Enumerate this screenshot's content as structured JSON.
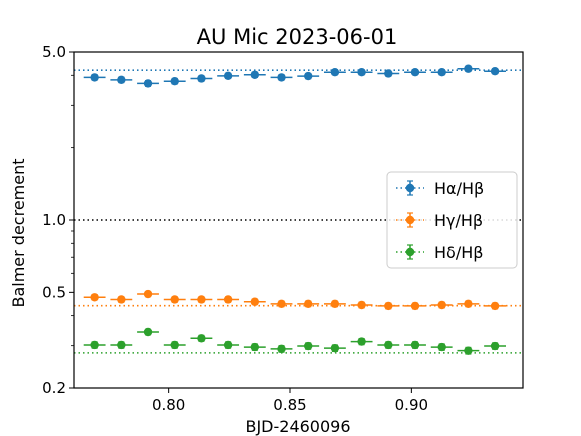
{
  "chart_data": {
    "type": "scatter",
    "title": "AU Mic 2023-06-01",
    "xlabel": "BJD-2460096",
    "ylabel": "Balmer decrement",
    "xlim": [
      0.761,
      0.946
    ],
    "ylim": [
      0.2,
      5.0
    ],
    "yscale": "log",
    "x_ticks": [
      {
        "value": 0.8,
        "label": "0.80"
      },
      {
        "value": 0.85,
        "label": "0.85"
      },
      {
        "value": 0.9,
        "label": "0.90"
      }
    ],
    "y_ticks": [
      {
        "value": 0.2,
        "label": "0.2"
      },
      {
        "value": 0.5,
        "label": "0.5"
      },
      {
        "value": 1.0,
        "label": "1.0"
      },
      {
        "value": 5.0,
        "label": "5.0"
      }
    ],
    "grid": false,
    "legend_position": "right",
    "reference_lines": [
      {
        "y": 4.2,
        "color": "#1f77b4"
      },
      {
        "y": 1.0,
        "color": "#000000"
      },
      {
        "y": 0.44,
        "color": "#ff7f0e"
      },
      {
        "y": 0.28,
        "color": "#2ca02c"
      }
    ],
    "x": [
      0.7695,
      0.7805,
      0.7915,
      0.8025,
      0.8135,
      0.8245,
      0.8355,
      0.8465,
      0.8575,
      0.8685,
      0.8795,
      0.8905,
      0.9015,
      0.9125,
      0.9235,
      0.9345
    ],
    "x_halfwidth": 0.0045,
    "series": [
      {
        "name": "Hα/Hβ",
        "color": "#1f77b4",
        "values": [
          3.92,
          3.83,
          3.7,
          3.78,
          3.88,
          3.98,
          4.02,
          3.92,
          3.97,
          4.12,
          4.12,
          4.07,
          4.12,
          4.12,
          4.26,
          4.16
        ],
        "yerr": [
          0.1,
          0.1,
          0.1,
          0.1,
          0.1,
          0.1,
          0.1,
          0.1,
          0.1,
          0.1,
          0.1,
          0.1,
          0.1,
          0.1,
          0.1,
          0.1
        ]
      },
      {
        "name": "Hγ/Hβ",
        "color": "#ff7f0e",
        "values": [
          0.477,
          0.467,
          0.492,
          0.467,
          0.467,
          0.467,
          0.457,
          0.448,
          0.448,
          0.448,
          0.443,
          0.439,
          0.439,
          0.443,
          0.448,
          0.439
        ],
        "yerr": [
          0.012,
          0.012,
          0.012,
          0.012,
          0.012,
          0.012,
          0.012,
          0.012,
          0.012,
          0.012,
          0.012,
          0.012,
          0.012,
          0.012,
          0.012,
          0.012
        ]
      },
      {
        "name": "Hδ/Hβ",
        "color": "#2ca02c",
        "values": [
          0.302,
          0.302,
          0.342,
          0.302,
          0.322,
          0.302,
          0.296,
          0.291,
          0.299,
          0.293,
          0.312,
          0.302,
          0.302,
          0.296,
          0.286,
          0.299
        ],
        "yerr": [
          0.009,
          0.009,
          0.009,
          0.009,
          0.009,
          0.009,
          0.009,
          0.009,
          0.009,
          0.009,
          0.009,
          0.009,
          0.009,
          0.009,
          0.009,
          0.009
        ]
      }
    ]
  }
}
